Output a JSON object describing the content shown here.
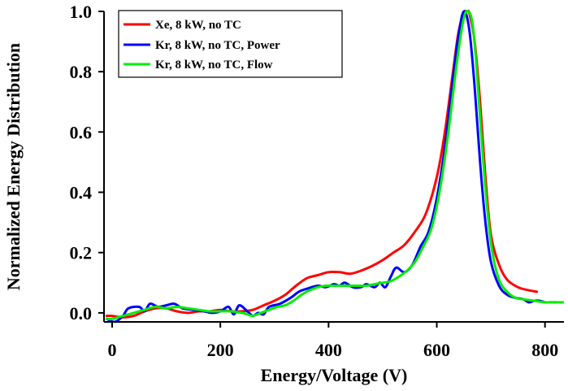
{
  "chart_data": {
    "type": "line",
    "title": "",
    "xlabel": "Energy/Voltage (V)",
    "ylabel": "Normalized Energy Distribution",
    "xlim": [
      -15,
      835
    ],
    "ylim": [
      -0.03,
      1.0
    ],
    "x_ticks": [
      0,
      200,
      400,
      600,
      800
    ],
    "y_ticks": [
      0.0,
      0.2,
      0.4,
      0.6,
      0.8,
      1.0
    ],
    "x_tick_labels": [
      "0",
      "200",
      "400",
      "600",
      "800"
    ],
    "y_tick_labels": [
      "0.0",
      "0.2",
      "0.4",
      "0.6",
      "0.8",
      "1.0"
    ],
    "grid": false,
    "legend_position": "top-left",
    "series": [
      {
        "name": "Xe, 8 kW, no TC",
        "color": "#ff0000",
        "points": [
          [
            -10,
            -0.01
          ],
          [
            0,
            -0.01
          ],
          [
            20,
            -0.015
          ],
          [
            40,
            -0.01
          ],
          [
            60,
            0.005
          ],
          [
            80,
            0.015
          ],
          [
            100,
            0.015
          ],
          [
            120,
            0.005
          ],
          [
            140,
            0.0
          ],
          [
            160,
            0.005
          ],
          [
            180,
            0.005
          ],
          [
            200,
            0.01
          ],
          [
            220,
            0.005
          ],
          [
            240,
            0.005
          ],
          [
            260,
            0.01
          ],
          [
            280,
            0.025
          ],
          [
            300,
            0.04
          ],
          [
            320,
            0.06
          ],
          [
            340,
            0.09
          ],
          [
            360,
            0.115
          ],
          [
            380,
            0.125
          ],
          [
            400,
            0.135
          ],
          [
            420,
            0.135
          ],
          [
            440,
            0.13
          ],
          [
            460,
            0.14
          ],
          [
            480,
            0.155
          ],
          [
            500,
            0.175
          ],
          [
            520,
            0.2
          ],
          [
            540,
            0.225
          ],
          [
            560,
            0.27
          ],
          [
            580,
            0.33
          ],
          [
            600,
            0.45
          ],
          [
            615,
            0.6
          ],
          [
            630,
            0.8
          ],
          [
            640,
            0.93
          ],
          [
            650,
            0.995
          ],
          [
            655,
            1.0
          ],
          [
            660,
            0.995
          ],
          [
            670,
            0.9
          ],
          [
            680,
            0.7
          ],
          [
            690,
            0.45
          ],
          [
            700,
            0.26
          ],
          [
            715,
            0.16
          ],
          [
            730,
            0.11
          ],
          [
            750,
            0.085
          ],
          [
            770,
            0.075
          ],
          [
            785,
            0.07
          ]
        ]
      },
      {
        "name": "Kr, 8 kW, no TC, Power",
        "color": "#0000ff",
        "points": [
          [
            -10,
            -0.02
          ],
          [
            5,
            -0.03
          ],
          [
            20,
            -0.01
          ],
          [
            30,
            0.015
          ],
          [
            50,
            0.02
          ],
          [
            60,
            0.005
          ],
          [
            70,
            0.03
          ],
          [
            85,
            0.02
          ],
          [
            100,
            0.025
          ],
          [
            115,
            0.03
          ],
          [
            130,
            0.015
          ],
          [
            150,
            0.01
          ],
          [
            170,
            0.005
          ],
          [
            185,
            0.0
          ],
          [
            200,
            0.005
          ],
          [
            215,
            0.02
          ],
          [
            225,
            -0.005
          ],
          [
            235,
            0.025
          ],
          [
            250,
            0.005
          ],
          [
            260,
            -0.01
          ],
          [
            270,
            0.0
          ],
          [
            280,
            -0.005
          ],
          [
            290,
            0.02
          ],
          [
            310,
            0.03
          ],
          [
            330,
            0.05
          ],
          [
            345,
            0.07
          ],
          [
            360,
            0.08
          ],
          [
            380,
            0.09
          ],
          [
            395,
            0.085
          ],
          [
            410,
            0.095
          ],
          [
            420,
            0.09
          ],
          [
            430,
            0.1
          ],
          [
            445,
            0.085
          ],
          [
            460,
            0.085
          ],
          [
            470,
            0.095
          ],
          [
            485,
            0.085
          ],
          [
            495,
            0.1
          ],
          [
            505,
            0.085
          ],
          [
            515,
            0.12
          ],
          [
            525,
            0.15
          ],
          [
            540,
            0.135
          ],
          [
            555,
            0.16
          ],
          [
            570,
            0.22
          ],
          [
            585,
            0.27
          ],
          [
            600,
            0.38
          ],
          [
            615,
            0.55
          ],
          [
            630,
            0.78
          ],
          [
            640,
            0.92
          ],
          [
            650,
            1.0
          ],
          [
            660,
            0.94
          ],
          [
            670,
            0.75
          ],
          [
            680,
            0.5
          ],
          [
            690,
            0.3
          ],
          [
            700,
            0.17
          ],
          [
            715,
            0.09
          ],
          [
            730,
            0.06
          ],
          [
            745,
            0.05
          ],
          [
            760,
            0.045
          ],
          [
            770,
            0.035
          ],
          [
            780,
            0.04
          ],
          [
            790,
            0.04
          ],
          [
            800,
            0.035
          ],
          [
            810,
            0.035
          ],
          [
            820,
            0.035
          ]
        ]
      },
      {
        "name": "Kr, 8 kW, no TC, Flow",
        "color": "#00ee00",
        "points": [
          [
            -10,
            -0.02
          ],
          [
            0,
            -0.02
          ],
          [
            20,
            -0.01
          ],
          [
            40,
            0.0
          ],
          [
            60,
            0.01
          ],
          [
            80,
            0.02
          ],
          [
            100,
            0.015
          ],
          [
            120,
            0.02
          ],
          [
            140,
            0.015
          ],
          [
            160,
            0.01
          ],
          [
            180,
            0.005
          ],
          [
            200,
            0.005
          ],
          [
            220,
            0.005
          ],
          [
            240,
            0.0
          ],
          [
            250,
            -0.005
          ],
          [
            260,
            -0.01
          ],
          [
            275,
            0.0
          ],
          [
            290,
            0.01
          ],
          [
            305,
            0.02
          ],
          [
            320,
            0.025
          ],
          [
            335,
            0.04
          ],
          [
            350,
            0.06
          ],
          [
            365,
            0.075
          ],
          [
            380,
            0.085
          ],
          [
            395,
            0.09
          ],
          [
            410,
            0.09
          ],
          [
            425,
            0.09
          ],
          [
            440,
            0.09
          ],
          [
            455,
            0.09
          ],
          [
            470,
            0.09
          ],
          [
            485,
            0.095
          ],
          [
            500,
            0.1
          ],
          [
            515,
            0.105
          ],
          [
            530,
            0.12
          ],
          [
            545,
            0.14
          ],
          [
            560,
            0.17
          ],
          [
            575,
            0.22
          ],
          [
            590,
            0.28
          ],
          [
            605,
            0.4
          ],
          [
            620,
            0.58
          ],
          [
            635,
            0.8
          ],
          [
            645,
            0.93
          ],
          [
            652,
            0.99
          ],
          [
            658,
            1.0
          ],
          [
            665,
            0.97
          ],
          [
            672,
            0.85
          ],
          [
            682,
            0.6
          ],
          [
            692,
            0.37
          ],
          [
            702,
            0.21
          ],
          [
            715,
            0.11
          ],
          [
            730,
            0.07
          ],
          [
            745,
            0.05
          ],
          [
            760,
            0.045
          ],
          [
            780,
            0.04
          ],
          [
            800,
            0.035
          ],
          [
            820,
            0.035
          ],
          [
            835,
            0.035
          ]
        ]
      }
    ]
  }
}
